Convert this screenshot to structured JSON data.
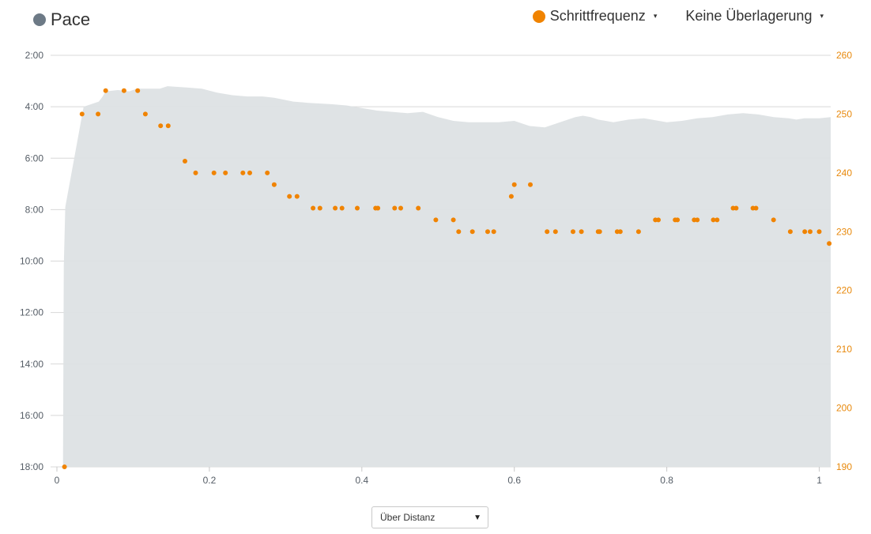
{
  "legend": {
    "primary_label": "Pace",
    "secondary_label": "Schrittfrequenz",
    "overlay_label": "Keine Überlagerung",
    "dropdown_caret": "▾"
  },
  "controls": {
    "x_mode_value": "Über Distanz",
    "x_mode_arrow": "▼"
  },
  "colors": {
    "pace_dot": "#6d7a86",
    "pace_area": "#dde1e4",
    "cadence": "#f08300",
    "grid": "#d8d8d8",
    "left_axis_text": "#555d66",
    "right_axis_text": "#e8890c"
  },
  "chart_data": {
    "type": "area+scatter",
    "x_ticks": [
      "0",
      "0.2",
      "0.4",
      "0.6",
      "0.8",
      "1"
    ],
    "x_tick_values": [
      0,
      0.2,
      0.4,
      0.6,
      0.8,
      1.0
    ],
    "xlim": [
      0,
      1.015
    ],
    "left_axis": {
      "ticks": [
        "2:00",
        "4:00",
        "6:00",
        "8:00",
        "10:00",
        "12:00",
        "14:00",
        "16:00",
        "18:00"
      ],
      "tick_minutes": [
        2,
        4,
        6,
        8,
        10,
        12,
        14,
        16,
        18
      ],
      "ylim_minutes": [
        2,
        18
      ],
      "inverted": true
    },
    "right_axis": {
      "ticks": [
        "260",
        "250",
        "240",
        "230",
        "220",
        "210",
        "200",
        "190"
      ],
      "tick_values": [
        260,
        250,
        240,
        230,
        220,
        210,
        200,
        190
      ],
      "ylim": [
        190,
        260
      ]
    },
    "grid": true,
    "series": [
      {
        "name": "Pace",
        "kind": "area",
        "x": [
          0.008,
          0.009,
          0.011,
          0.035,
          0.055,
          0.06,
          0.064,
          0.08,
          0.095,
          0.105,
          0.12,
          0.135,
          0.145,
          0.17,
          0.19,
          0.21,
          0.23,
          0.25,
          0.27,
          0.285,
          0.31,
          0.33,
          0.36,
          0.38,
          0.4,
          0.42,
          0.44,
          0.46,
          0.48,
          0.5,
          0.52,
          0.54,
          0.56,
          0.58,
          0.6,
          0.62,
          0.64,
          0.66,
          0.68,
          0.69,
          0.7,
          0.71,
          0.73,
          0.75,
          0.77,
          0.78,
          0.8,
          0.82,
          0.84,
          0.86,
          0.88,
          0.9,
          0.92,
          0.94,
          0.96,
          0.97,
          0.98,
          0.99,
          1.0,
          1.015
        ],
        "y_minutes": [
          18.0,
          10.2,
          7.9,
          4.0,
          3.8,
          3.6,
          3.4,
          3.35,
          3.4,
          3.3,
          3.3,
          3.3,
          3.2,
          3.25,
          3.3,
          3.45,
          3.55,
          3.6,
          3.6,
          3.65,
          3.8,
          3.85,
          3.9,
          3.95,
          4.05,
          4.15,
          4.2,
          4.25,
          4.2,
          4.4,
          4.55,
          4.6,
          4.6,
          4.6,
          4.55,
          4.75,
          4.8,
          4.6,
          4.4,
          4.35,
          4.4,
          4.5,
          4.6,
          4.5,
          4.45,
          4.5,
          4.6,
          4.55,
          4.45,
          4.4,
          4.3,
          4.25,
          4.3,
          4.4,
          4.45,
          4.5,
          4.45,
          4.45,
          4.45,
          4.4
        ]
      },
      {
        "name": "Schrittfrequenz",
        "kind": "scatter",
        "x": [
          0.01,
          0.033,
          0.054,
          0.064,
          0.088,
          0.106,
          0.116,
          0.136,
          0.146,
          0.168,
          0.182,
          0.206,
          0.221,
          0.244,
          0.253,
          0.276,
          0.285,
          0.305,
          0.315,
          0.336,
          0.345,
          0.365,
          0.374,
          0.394,
          0.418,
          0.421,
          0.443,
          0.451,
          0.474,
          0.497,
          0.52,
          0.527,
          0.545,
          0.565,
          0.573,
          0.596,
          0.6,
          0.621,
          0.643,
          0.654,
          0.677,
          0.688,
          0.71,
          0.712,
          0.735,
          0.739,
          0.763,
          0.785,
          0.789,
          0.811,
          0.814,
          0.836,
          0.84,
          0.861,
          0.866,
          0.887,
          0.891,
          0.913,
          0.917,
          0.94,
          0.962,
          0.981,
          0.988,
          1.0,
          1.013
        ],
        "values": [
          190,
          250,
          250,
          254,
          254,
          254,
          250,
          248,
          248,
          242,
          240,
          240,
          240,
          240,
          240,
          240,
          238,
          236,
          236,
          234,
          234,
          234,
          234,
          234,
          234,
          234,
          234,
          234,
          234,
          232,
          232,
          230,
          230,
          230,
          230,
          236,
          238,
          238,
          230,
          230,
          230,
          230,
          230,
          230,
          230,
          230,
          230,
          232,
          232,
          232,
          232,
          232,
          232,
          232,
          232,
          234,
          234,
          234,
          234,
          232,
          230,
          230,
          230,
          230,
          228
        ]
      }
    ]
  }
}
